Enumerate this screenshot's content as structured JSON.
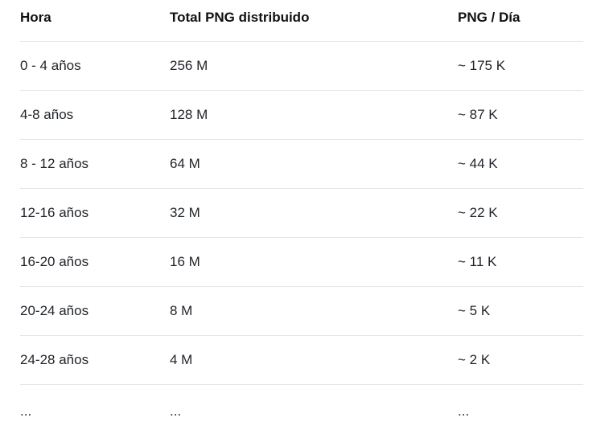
{
  "table": {
    "headers": [
      "Hora",
      "Total PNG distribuido",
      "PNG / Día"
    ],
    "rows": [
      [
        "0 - 4 años",
        "256 M",
        "~ 175 K"
      ],
      [
        "4-8 años",
        "128 M",
        "~ 87 K"
      ],
      [
        "8 - 12 años",
        "64 M",
        "~ 44 K"
      ],
      [
        "12-16 años",
        "32 M",
        "~ 22 K"
      ],
      [
        "16-20 años",
        "16 M",
        "~ 11 K"
      ],
      [
        "20-24 años",
        "8 M",
        "~ 5 K"
      ],
      [
        "24-28 años",
        "4 M",
        "~ 2 K"
      ],
      [
        "...",
        "...",
        "..."
      ]
    ]
  }
}
